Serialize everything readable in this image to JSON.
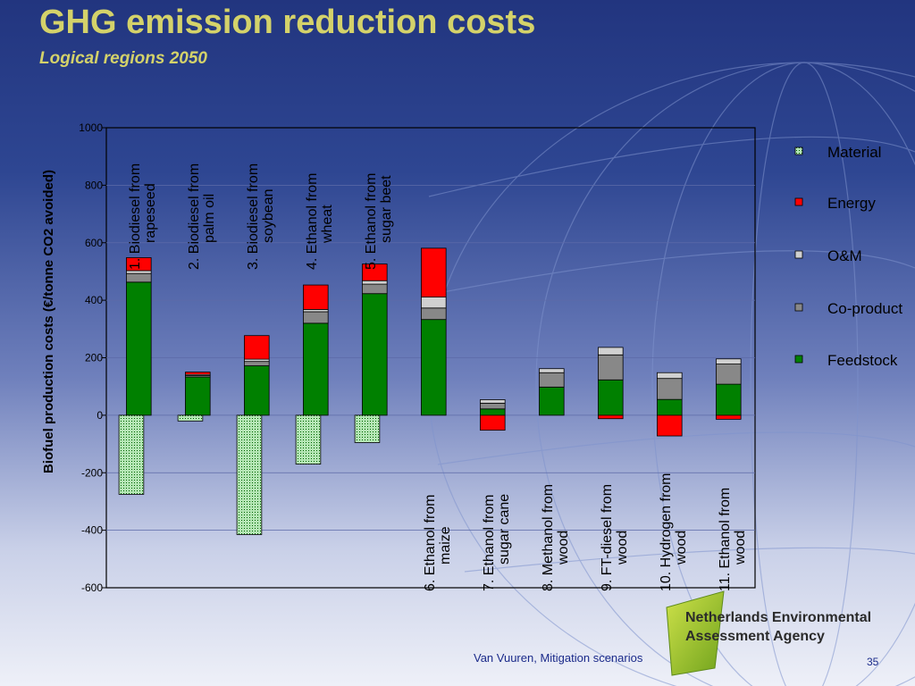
{
  "slide": {
    "title": "GHG emission reduction costs",
    "subtitle": "Logical regions 2050",
    "footer": "Van Vuuren, Mitigation scenarios",
    "page_number": "35",
    "agency": {
      "line1": "Netherlands Environmental",
      "line2": "Assessment Agency"
    }
  },
  "chart_data": {
    "type": "bar",
    "stacked": true,
    "ylabel": "Biofuel production costs (€/tonne CO2 avoided)",
    "ylim": [
      -600,
      1000
    ],
    "yticks": [
      1000,
      800,
      600,
      400,
      200,
      0,
      -200,
      -400,
      -600
    ],
    "grid": true,
    "legend_position": "right",
    "categories": [
      [
        "1. Biodiesel from",
        "rapeseed"
      ],
      [
        "2. Biodiesel from",
        "palm oil"
      ],
      [
        "3. Biodiesel from",
        "soybean"
      ],
      [
        "4. Ethanol from",
        "wheat"
      ],
      [
        "5. Ethanol from",
        "sugar beet"
      ],
      [
        "6. Ethanol from",
        "maize"
      ],
      [
        "7. Ethanol from",
        "sugar cane"
      ],
      [
        "8. Methanol from",
        "wood"
      ],
      [
        "9. FT-diesel from",
        "wood"
      ],
      [
        "10. Hydrogen from",
        "wood"
      ],
      [
        "11. Ethanol from",
        "wood"
      ]
    ],
    "label_position": [
      "top",
      "top",
      "top",
      "top",
      "top",
      "bottom",
      "bottom",
      "bottom",
      "bottom",
      "bottom",
      "bottom"
    ],
    "stack_order": [
      "Feedstock",
      "Co-product",
      "O&M",
      "Energy",
      "Material"
    ],
    "series": [
      {
        "name": "Material",
        "color": "#b4e6b4",
        "pattern": "dotted",
        "values": [
          -275,
          -20,
          -415,
          -170,
          -95,
          0,
          0,
          0,
          0,
          0,
          0
        ]
      },
      {
        "name": "Energy",
        "color": "#ff0000",
        "values": [
          45,
          8,
          82,
          85,
          58,
          170,
          -52,
          0,
          -12,
          -72,
          -14
        ]
      },
      {
        "name": "O&M",
        "color": "#d0d0d0",
        "values": [
          10,
          4,
          8,
          8,
          12,
          38,
          12,
          14,
          26,
          20,
          18
        ]
      },
      {
        "name": "Co-product",
        "color": "#888888",
        "values": [
          30,
          5,
          15,
          40,
          33,
          40,
          20,
          50,
          87,
          73,
          70
        ]
      },
      {
        "name": "Feedstock",
        "color": "#008000",
        "values": [
          463,
          133,
          172,
          320,
          423,
          333,
          22,
          98,
          123,
          55,
          108
        ]
      }
    ]
  }
}
